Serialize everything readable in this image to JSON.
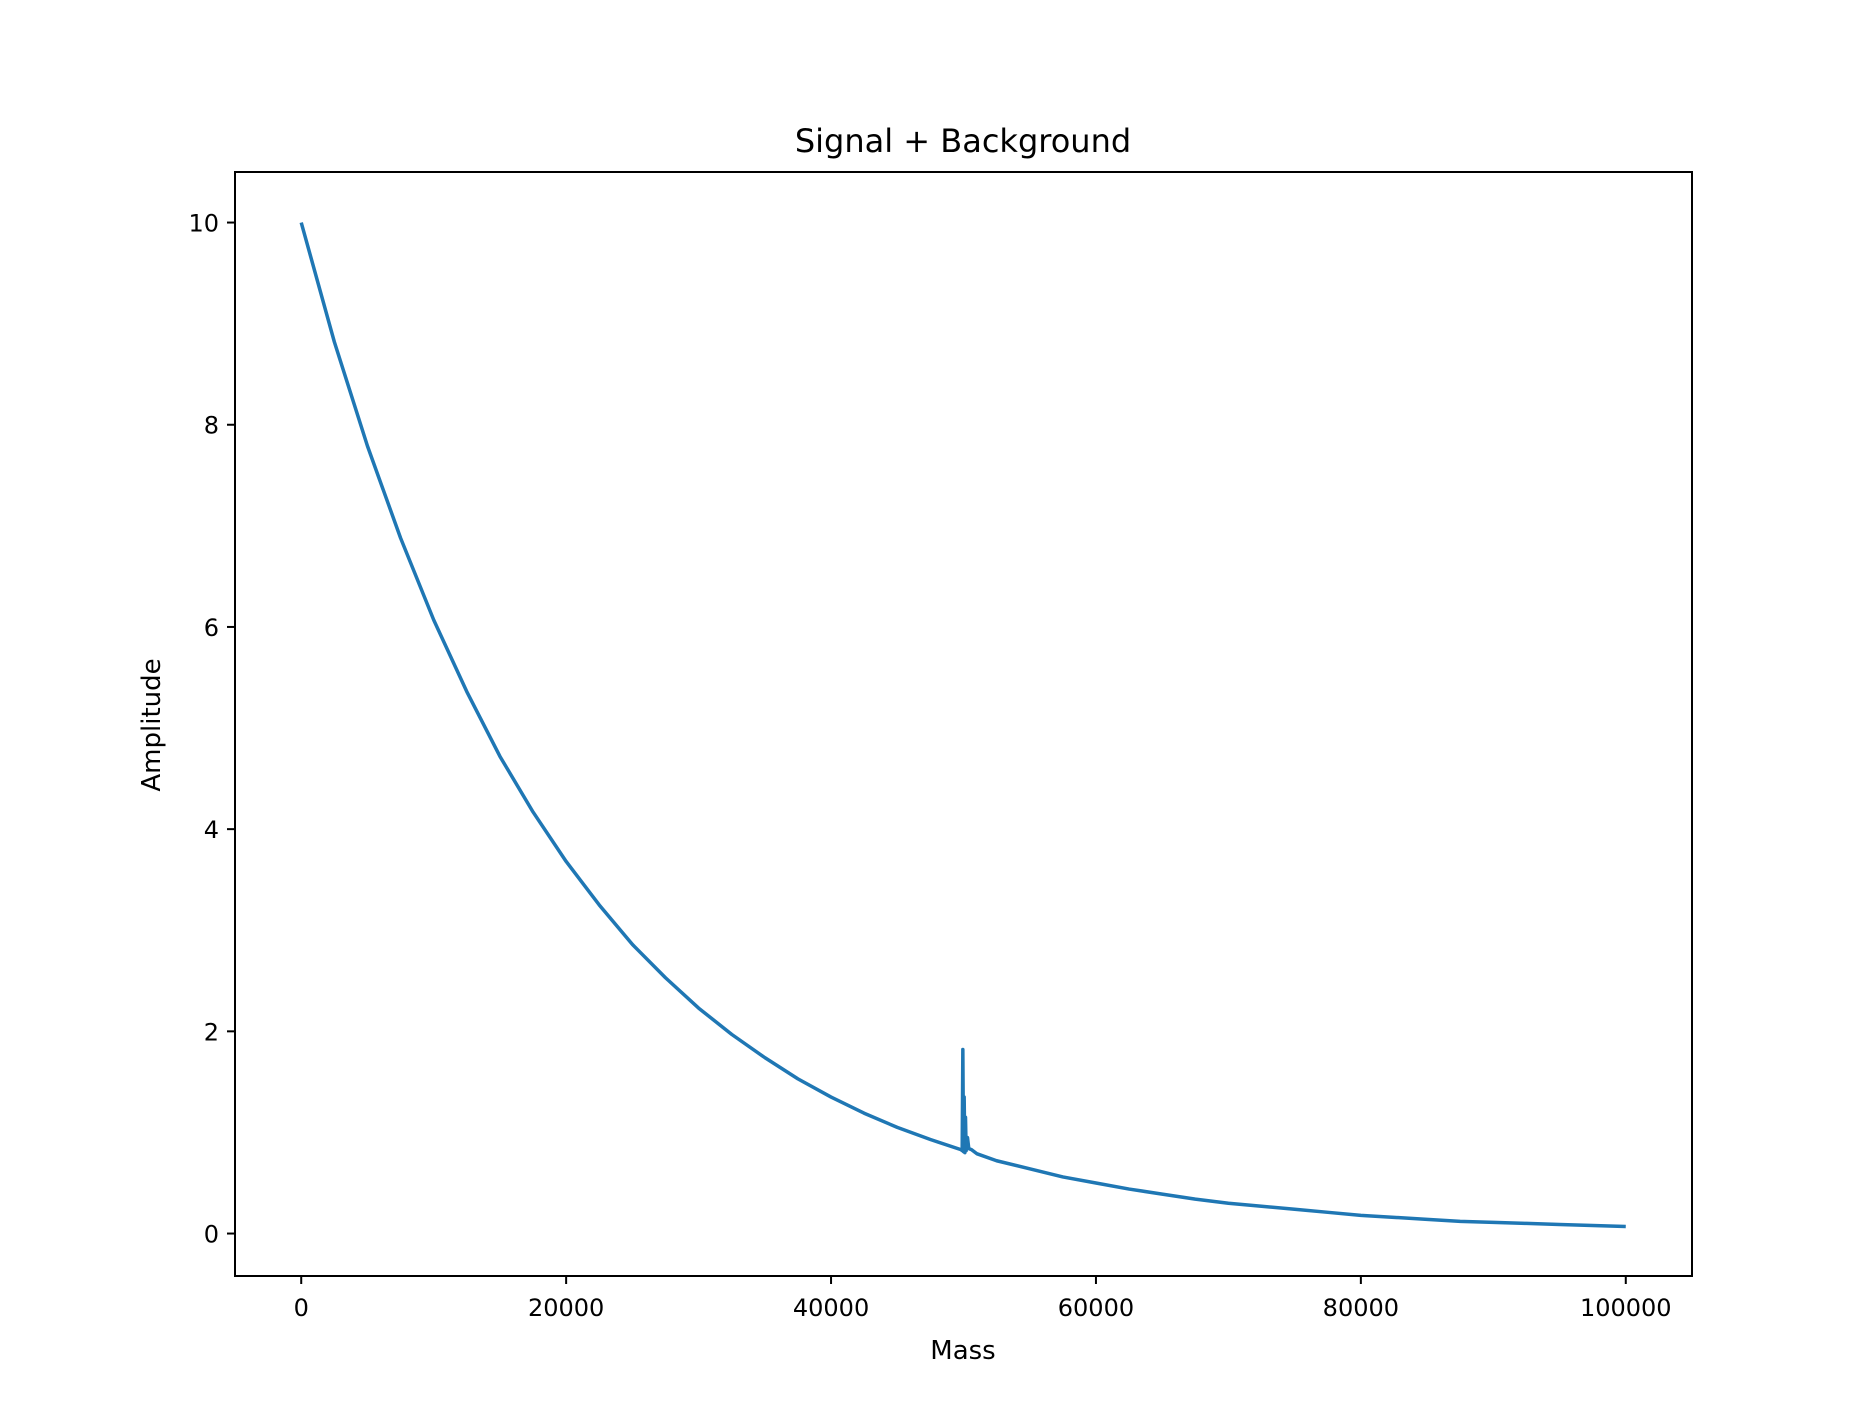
{
  "chart_data": {
    "type": "line",
    "title": "Signal + Background",
    "xlabel": "Mass",
    "ylabel": "Amplitude",
    "xlim": [
      -5000,
      105000
    ],
    "ylim": [
      -0.42,
      10.5
    ],
    "xticks": [
      0,
      20000,
      40000,
      60000,
      80000,
      100000
    ],
    "xtick_labels": [
      "0",
      "20000",
      "40000",
      "60000",
      "80000",
      "100000"
    ],
    "yticks": [
      0,
      2,
      4,
      6,
      8,
      10
    ],
    "ytick_labels": [
      "0",
      "2",
      "4",
      "6",
      "8",
      "10"
    ],
    "grid": false,
    "legend": "none",
    "series": [
      {
        "color": "#1f77b4",
        "x": [
          0,
          2500,
          5000,
          7500,
          10000,
          12500,
          15000,
          17500,
          20000,
          22500,
          25000,
          27500,
          30000,
          32500,
          35000,
          37500,
          40000,
          42500,
          45000,
          47500,
          49800,
          49900,
          49950,
          50000,
          50050,
          50100,
          50150,
          50200,
          50300,
          50400,
          50600,
          51000,
          52500,
          55000,
          57500,
          60000,
          62500,
          65000,
          67500,
          70000,
          72500,
          75000,
          77500,
          80000,
          82500,
          85000,
          87500,
          90000,
          92500,
          95000,
          97500,
          100000
        ],
        "y": [
          10.0,
          8.82,
          7.79,
          6.88,
          6.07,
          5.36,
          4.72,
          4.17,
          3.68,
          3.25,
          2.86,
          2.53,
          2.23,
          1.97,
          1.74,
          1.53,
          1.35,
          1.19,
          1.05,
          0.93,
          0.83,
          0.82,
          1.82,
          0.81,
          1.35,
          0.8,
          1.15,
          0.82,
          0.95,
          0.84,
          0.83,
          0.79,
          0.72,
          0.64,
          0.56,
          0.5,
          0.44,
          0.39,
          0.34,
          0.3,
          0.27,
          0.24,
          0.21,
          0.18,
          0.16,
          0.14,
          0.12,
          0.11,
          0.1,
          0.09,
          0.08,
          0.07
        ]
      }
    ]
  }
}
